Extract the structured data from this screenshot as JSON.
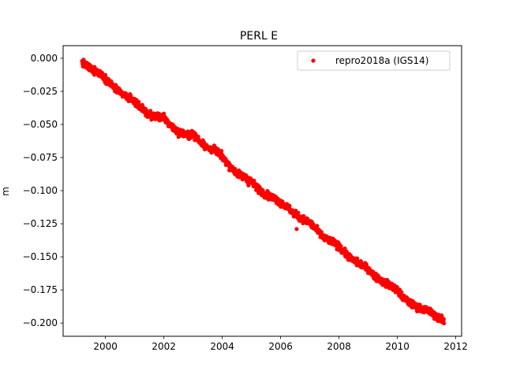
{
  "chart_data": {
    "type": "scatter",
    "title": "PERL E",
    "xlabel": "",
    "ylabel": "m",
    "xlim": [
      1998.55,
      2012.2
    ],
    "ylim": [
      -0.21,
      0.0095
    ],
    "x_ticks": [
      2000,
      2002,
      2004,
      2006,
      2008,
      2010,
      2012
    ],
    "x_tick_labels": [
      "2000",
      "2002",
      "2004",
      "2006",
      "2008",
      "2010",
      "2012"
    ],
    "y_ticks": [
      0.0,
      -0.025,
      -0.05,
      -0.075,
      -0.1,
      -0.125,
      -0.15,
      -0.175,
      -0.2
    ],
    "y_tick_labels": [
      "0.000",
      "−0.025",
      "−0.050",
      "−0.075",
      "−0.100",
      "−0.125",
      "−0.150",
      "−0.175",
      "−0.200"
    ],
    "grid": false,
    "legend_position": "top-right",
    "series": [
      {
        "name": "repro2018a (IGS14)",
        "color": "#ff0000",
        "marker": "dot",
        "x": [
          1999.2,
          1999.5,
          1999.8,
          2000.0,
          2000.2,
          2000.5,
          2000.8,
          2001.0,
          2001.2,
          2001.5,
          2001.8,
          2002.0,
          2002.2,
          2002.5,
          2002.8,
          2003.0,
          2003.2,
          2003.5,
          2003.8,
          2004.0,
          2004.2,
          2004.5,
          2004.8,
          2005.0,
          2005.2,
          2005.5,
          2005.8,
          2006.0,
          2006.2,
          2006.5,
          2006.8,
          2007.0,
          2007.2,
          2007.5,
          2007.8,
          2008.0,
          2008.2,
          2008.5,
          2008.8,
          2009.0,
          2009.2,
          2009.5,
          2009.8,
          2010.0,
          2010.2,
          2010.5,
          2010.8,
          2011.0,
          2011.2,
          2011.5,
          2011.6
        ],
        "y": [
          -0.003,
          -0.008,
          -0.011,
          -0.015,
          -0.02,
          -0.026,
          -0.03,
          -0.032,
          -0.037,
          -0.043,
          -0.044,
          -0.045,
          -0.05,
          -0.056,
          -0.058,
          -0.057,
          -0.062,
          -0.068,
          -0.07,
          -0.074,
          -0.08,
          -0.087,
          -0.09,
          -0.093,
          -0.098,
          -0.103,
          -0.106,
          -0.109,
          -0.112,
          -0.118,
          -0.122,
          -0.124,
          -0.129,
          -0.136,
          -0.139,
          -0.142,
          -0.147,
          -0.153,
          -0.156,
          -0.159,
          -0.164,
          -0.169,
          -0.172,
          -0.175,
          -0.181,
          -0.186,
          -0.189,
          -0.19,
          -0.193,
          -0.197,
          -0.199
        ]
      }
    ]
  }
}
